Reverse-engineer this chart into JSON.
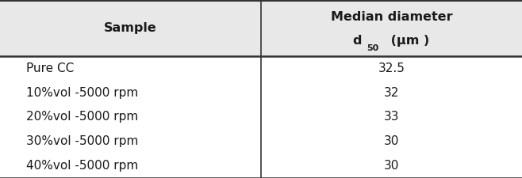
{
  "col1_header": "Sample",
  "col2_header_line1": "Median diameter",
  "col2_header_d": "d",
  "col2_header_sub": "50",
  "col2_header_unit": " (μm )",
  "rows": [
    [
      "Pure CC",
      "32.5"
    ],
    [
      "10%vol -5000 rpm",
      "32"
    ],
    [
      "20%vol -5000 rpm",
      "33"
    ],
    [
      "30%vol -5000 rpm",
      "30"
    ],
    [
      "40%vol -5000 rpm",
      "30"
    ]
  ],
  "header_bg": "#e8e8e8",
  "row_bg": "#ffffff",
  "border_color": "#333333",
  "text_color": "#1a1a1a",
  "col_split": 0.5,
  "figsize": [
    6.58,
    2.25
  ],
  "dpi": 100,
  "header_fontsize": 11.5,
  "row_fontsize": 11
}
